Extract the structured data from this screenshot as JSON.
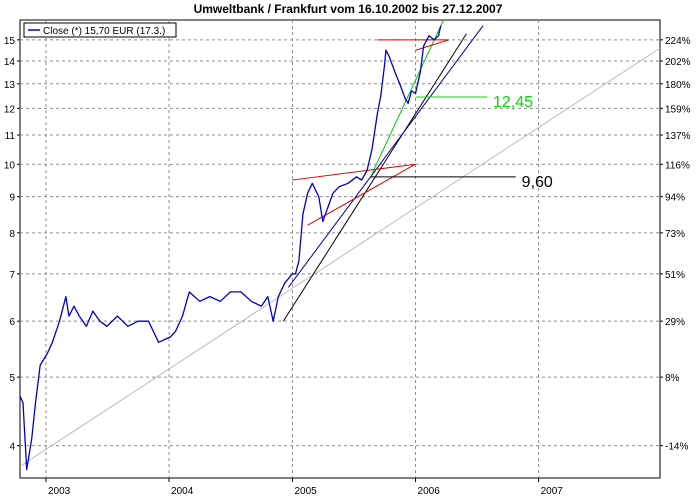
{
  "chart_data": {
    "type": "line",
    "title": "Umweltbank / Frankfurt vom 16.10.2002 bis 27.12.2007",
    "legend": {
      "entries": [
        "Close (*) 15,70 EUR (17.3.)"
      ],
      "placement": "top-left"
    },
    "x_axis": {
      "range": [
        "2002-10-16",
        "2007-12-27"
      ],
      "tick_labels": [
        "2003",
        "2004",
        "2005",
        "2006",
        "2007"
      ],
      "tick_dates": [
        "2003-01-01",
        "2004-01-01",
        "2005-01-01",
        "2006-01-01",
        "2007-01-01"
      ]
    },
    "y_axis_left": {
      "scale": "log",
      "range": [
        3.6,
        16
      ],
      "tick_values": [
        4,
        5,
        6,
        7,
        8,
        9,
        10,
        11,
        12,
        13,
        14,
        15
      ]
    },
    "y_axis_right": {
      "tick_labels": [
        "224%",
        "202%",
        "180%",
        "159%",
        "137%",
        "116%",
        "94%",
        "73%",
        "51%",
        "29%",
        "8%",
        "-14%"
      ],
      "tick_prices": [
        15,
        14,
        13,
        12,
        11,
        10,
        9,
        8,
        7,
        6,
        5,
        4
      ]
    },
    "grid": true,
    "series": [
      {
        "name": "Close",
        "color": "#0000cc",
        "x": [
          "2002-10-16",
          "2002-10-25",
          "2002-11-05",
          "2002-11-20",
          "2002-12-01",
          "2002-12-15",
          "2003-01-05",
          "2003-01-20",
          "2003-02-10",
          "2003-03-01",
          "2003-03-10",
          "2003-03-25",
          "2003-04-10",
          "2003-05-01",
          "2003-05-20",
          "2003-06-10",
          "2003-07-01",
          "2003-08-01",
          "2003-09-01",
          "2003-10-01",
          "2003-11-01",
          "2003-12-01",
          "2004-01-05",
          "2004-01-20",
          "2004-02-10",
          "2004-03-01",
          "2004-04-01",
          "2004-05-01",
          "2004-06-01",
          "2004-07-01",
          "2004-08-01",
          "2004-09-01",
          "2004-10-01",
          "2004-10-20",
          "2004-11-05",
          "2004-11-20",
          "2004-12-10",
          "2005-01-01",
          "2005-01-10",
          "2005-01-20",
          "2005-02-01",
          "2005-02-15",
          "2005-03-01",
          "2005-03-10",
          "2005-03-20",
          "2005-04-01",
          "2005-04-20",
          "2005-05-01",
          "2005-05-20",
          "2005-06-15",
          "2005-07-10",
          "2005-07-25",
          "2005-08-10",
          "2005-08-25",
          "2005-09-10",
          "2005-09-20",
          "2005-10-01",
          "2005-10-05",
          "2005-10-15",
          "2005-11-01",
          "2005-11-15",
          "2005-12-01",
          "2005-12-10",
          "2005-12-20",
          "2006-01-01",
          "2006-01-15",
          "2006-01-25",
          "2006-02-10",
          "2006-02-25",
          "2006-03-10",
          "2006-03-17"
        ],
        "values": [
          4.7,
          4.6,
          3.7,
          4.1,
          4.6,
          5.2,
          5.4,
          5.6,
          6.0,
          6.5,
          6.1,
          6.3,
          6.1,
          5.9,
          6.2,
          6.0,
          5.9,
          6.1,
          5.9,
          6.0,
          6.0,
          5.6,
          5.7,
          5.8,
          6.1,
          6.6,
          6.4,
          6.5,
          6.4,
          6.6,
          6.6,
          6.4,
          6.3,
          6.5,
          6.0,
          6.5,
          6.8,
          7.0,
          7.0,
          7.3,
          8.5,
          9.1,
          9.4,
          9.2,
          9.0,
          8.3,
          8.8,
          9.1,
          9.3,
          9.4,
          9.6,
          9.5,
          9.8,
          10.5,
          11.8,
          12.5,
          13.8,
          14.5,
          14.2,
          13.5,
          13.0,
          12.4,
          12.2,
          12.7,
          12.6,
          13.5,
          14.7,
          15.2,
          15.0,
          15.2,
          15.7
        ]
      }
    ],
    "trendlines": [
      {
        "color": "#bbbbbb",
        "from": [
          "2002-10-20",
          3.75
        ],
        "to": [
          "2007-12-27",
          14.6
        ]
      },
      {
        "color": "#000000",
        "from": [
          "2004-12-05",
          6.0
        ],
        "to": [
          "2006-06-01",
          15.3
        ]
      },
      {
        "color": "#0000aa",
        "from": [
          "2004-12-20",
          6.7
        ],
        "to": [
          "2006-07-20",
          15.7
        ]
      },
      {
        "color": "#00cc00",
        "from": [
          "2005-08-25",
          9.7
        ],
        "to": [
          "2006-03-25",
          16.0
        ]
      },
      {
        "color": "#dd0000",
        "from": [
          "2004-12-31",
          9.5
        ],
        "to": [
          "2005-12-31",
          10.0
        ]
      },
      {
        "color": "#dd0000",
        "from": [
          "2005-02-15",
          8.2
        ],
        "to": [
          "2005-12-31",
          10.0
        ]
      },
      {
        "color": "#dd0000",
        "from": [
          "2005-09-10",
          15.0
        ],
        "to": [
          "2006-04-10",
          15.0
        ]
      },
      {
        "color": "#dd0000",
        "from": [
          "2006-01-01",
          14.5
        ],
        "to": [
          "2006-04-10",
          15.0
        ]
      }
    ],
    "levels": [
      {
        "value": 9.6,
        "label": "9,60",
        "color": "#000000",
        "from": "2005-08-20",
        "to": "2006-10-25"
      },
      {
        "value": 12.45,
        "label": "12,45",
        "color": "#00dd00",
        "from": "2006-01-01",
        "to": "2006-08-01"
      }
    ]
  }
}
